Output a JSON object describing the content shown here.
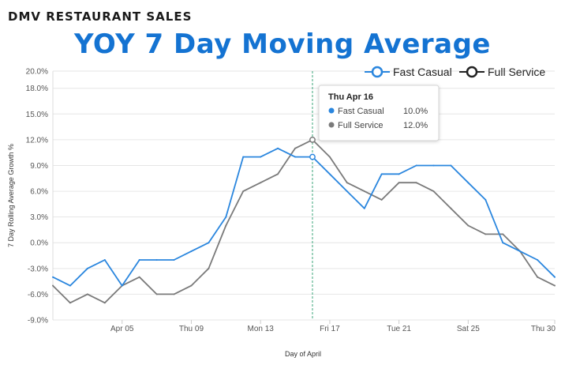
{
  "header": {
    "supertitle": "DMV RESTAURANT SALES",
    "title": "YOY 7 Day Moving Average"
  },
  "colors": {
    "title": "#1473d2",
    "fast_casual": "#2a86de",
    "full_service": "#7a7a7a",
    "grid": "#e6e6e6",
    "crosshair": "#3aa57a"
  },
  "chart_data": {
    "type": "line",
    "xlabel": "Day of April",
    "ylabel": "7 Day Rolling Average Growth %",
    "x": [
      "Apr 01",
      "Apr 02",
      "Apr 03",
      "Apr 04",
      "Apr 05",
      "Apr 06",
      "Apr 07",
      "Apr 08",
      "Apr 09",
      "Apr 10",
      "Apr 11",
      "Apr 12",
      "Apr 13",
      "Apr 14",
      "Apr 15",
      "Apr 16",
      "Apr 17",
      "Apr 18",
      "Apr 19",
      "Apr 20",
      "Apr 21",
      "Apr 22",
      "Apr 23",
      "Apr 24",
      "Apr 25",
      "Apr 26",
      "Apr 27",
      "Apr 28",
      "Apr 29",
      "Apr 30"
    ],
    "x_tick_labels": [
      {
        "day": 5,
        "label": "Apr 05"
      },
      {
        "day": 9,
        "label": "Thu 09"
      },
      {
        "day": 13,
        "label": "Mon 13"
      },
      {
        "day": 17,
        "label": "Fri 17"
      },
      {
        "day": 21,
        "label": "Tue 21"
      },
      {
        "day": 25,
        "label": "Sat 25"
      },
      {
        "day": 30,
        "label": "Thu 30"
      }
    ],
    "y_ticks": [
      "-9.0%",
      "-6.0%",
      "-3.0%",
      "0.0%",
      "3.0%",
      "6.0%",
      "9.0%",
      "12.0%",
      "15.0%",
      "18.0%",
      "20.0%"
    ],
    "y_tick_values": [
      -9,
      -6,
      -3,
      0,
      3,
      6,
      9,
      12,
      15,
      18,
      20
    ],
    "ylim": [
      -9,
      20
    ],
    "grid": true,
    "legend_position": "top-right",
    "series": [
      {
        "name": "Fast Casual",
        "values": [
          -4,
          -5,
          -3,
          -2,
          -5,
          -2,
          -2,
          -2,
          -1,
          0,
          3,
          10,
          10,
          11,
          10,
          10,
          8,
          6,
          4,
          8,
          8,
          9,
          9,
          9,
          7,
          5,
          0,
          -1,
          -2,
          -4
        ]
      },
      {
        "name": "Full Service",
        "values": [
          -5,
          -7,
          -6,
          -7,
          -5,
          -4,
          -6,
          -6,
          -5,
          -3,
          2,
          6,
          7,
          8,
          11,
          12,
          10,
          7,
          6,
          5,
          7,
          7,
          6,
          4,
          2,
          1,
          1,
          -1,
          -4,
          -5
        ]
      }
    ],
    "tooltip": {
      "title": "Thu Apr 16",
      "day": 16,
      "rows": [
        {
          "series": "Fast Casual",
          "value": "10.0%"
        },
        {
          "series": "Full Service",
          "value": "12.0%"
        }
      ]
    }
  }
}
